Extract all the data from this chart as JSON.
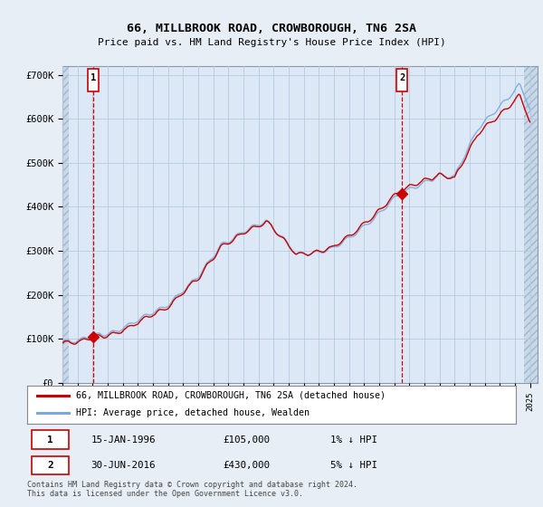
{
  "title": "66, MILLBROOK ROAD, CROWBOROUGH, TN6 2SA",
  "subtitle": "Price paid vs. HM Land Registry's House Price Index (HPI)",
  "ylim": [
    0,
    720000
  ],
  "yticks": [
    0,
    100000,
    200000,
    300000,
    400000,
    500000,
    600000,
    700000
  ],
  "ytick_labels": [
    "£0",
    "£100K",
    "£200K",
    "£300K",
    "£400K",
    "£500K",
    "£600K",
    "£700K"
  ],
  "hpi_color": "#7aaadd",
  "price_color": "#cc0000",
  "sale1_date": 1996.04,
  "sale1_price": 105000,
  "sale2_date": 2016.5,
  "sale2_price": 430000,
  "legend_line1": "66, MILLBROOK ROAD, CROWBOROUGH, TN6 2SA (detached house)",
  "legend_line2": "HPI: Average price, detached house, Wealden",
  "note1_date": "15-JAN-1996",
  "note1_price": "£105,000",
  "note1_hpi": "1% ↓ HPI",
  "note2_date": "30-JUN-2016",
  "note2_price": "£430,000",
  "note2_hpi": "5% ↓ HPI",
  "footer": "Contains HM Land Registry data © Crown copyright and database right 2024.\nThis data is licensed under the Open Government Licence v3.0.",
  "background_color": "#e8eef5",
  "plot_bg_color": "#dce8f5",
  "grid_color": "#b8cce0",
  "hatch_color": "#c8d8e8"
}
